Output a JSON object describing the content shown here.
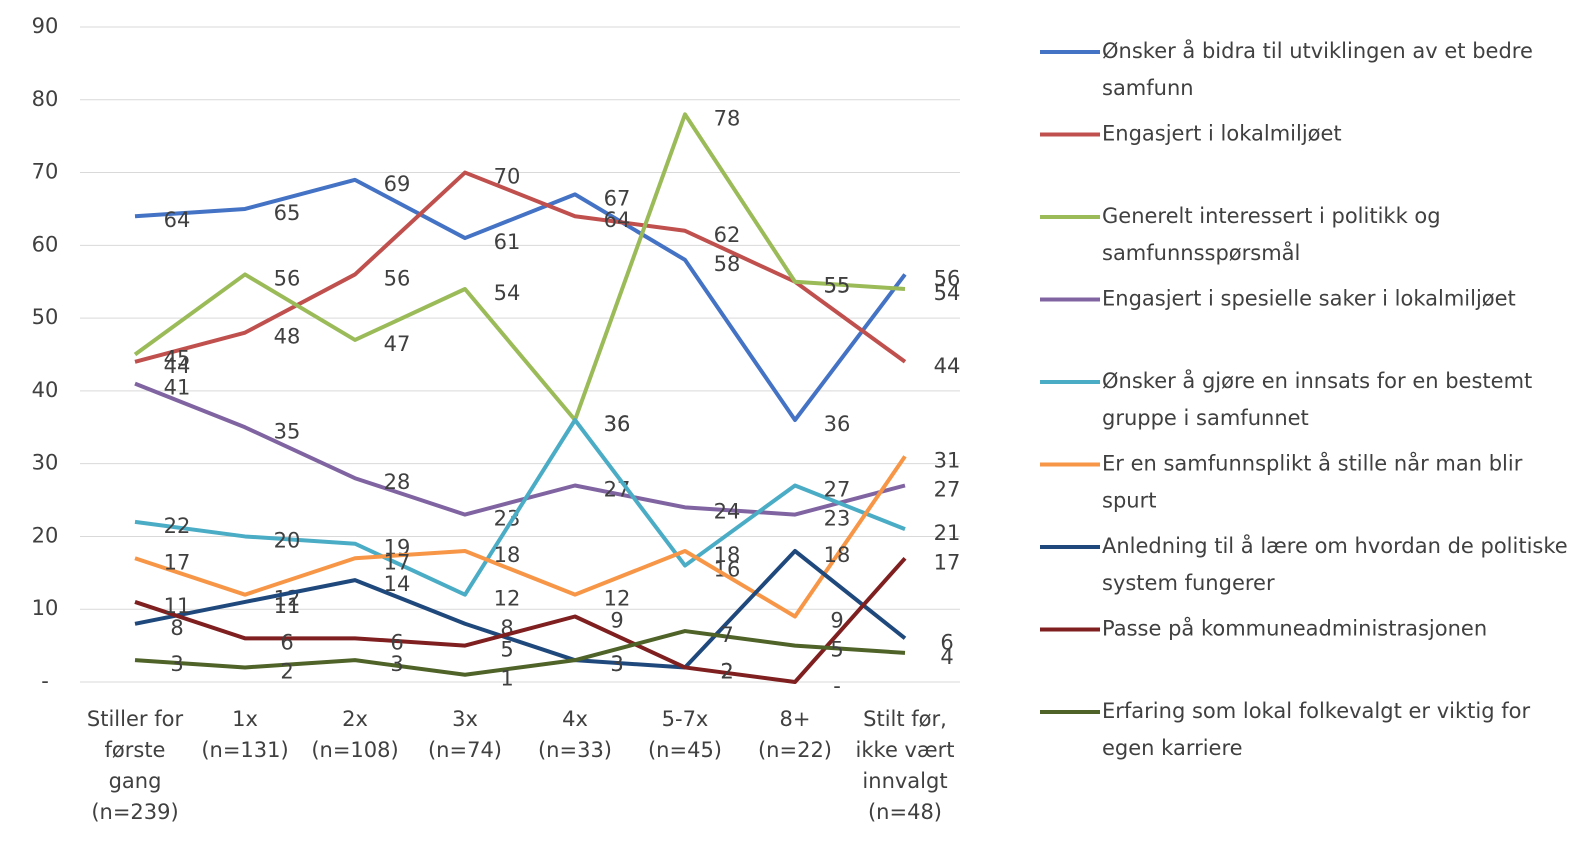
{
  "chart_data": {
    "type": "line",
    "categories": [
      "Stiller for første gang (n=239)",
      "1x (n=131)",
      "2x (n=108)",
      "3x (n=74)",
      "4x (n=33)",
      "5-7x (n=45)",
      "8+ (n=22)",
      "Stilt før, ikke vært innvalgt (n=48)"
    ],
    "series": [
      {
        "name": "Ønsker å bidra til utviklingen av et bedre samfunn",
        "color": "#4472c4",
        "values": [
          64,
          65,
          69,
          61,
          67,
          58,
          36,
          56
        ]
      },
      {
        "name": "Engasjert i lokalmiljøet",
        "color": "#c0504d",
        "values": [
          44,
          48,
          56,
          70,
          64,
          62,
          55,
          44
        ]
      },
      {
        "name": "Generelt interessert i politikk og samfunnsspørsmål",
        "color": "#9bbb59",
        "values": [
          45,
          56,
          47,
          54,
          36,
          78,
          55,
          54
        ]
      },
      {
        "name": "Engasjert i spesielle saker i lokalmiljøet",
        "color": "#8064a2",
        "values": [
          41,
          35,
          28,
          23,
          27,
          24,
          23,
          27
        ]
      },
      {
        "name": "Ønsker å gjøre en innsats for en bestemt gruppe i samfunnet",
        "color": "#4bacc6",
        "values": [
          22,
          20,
          19,
          12,
          36,
          16,
          27,
          21
        ]
      },
      {
        "name": "Er en samfunnsplikt å stille når man blir spurt",
        "color": "#f79646",
        "values": [
          17,
          12,
          17,
          18,
          12,
          18,
          9,
          31
        ]
      },
      {
        "name": "Anledning til å lære om hvordan de politiske system fungerer",
        "color": "#1f497d",
        "values": [
          8,
          11,
          14,
          8,
          3,
          2,
          18,
          6
        ]
      },
      {
        "name": "Passe på kommuneadministrasjonen",
        "color": "#7f1f1f",
        "values": [
          11,
          6,
          6,
          5,
          9,
          2,
          0,
          17
        ],
        "value_labels": [
          "11",
          "6",
          "6",
          "5",
          "9",
          "2",
          "-",
          "17"
        ]
      },
      {
        "name": "Erfaring som lokal folkevalgt er viktig for egen karriere",
        "color": "#4f6228",
        "values": [
          3,
          2,
          3,
          1,
          3,
          7,
          5,
          4
        ]
      }
    ],
    "ylim": [
      0,
      90
    ],
    "yticks": [
      {
        "value": 0,
        "label": "-"
      },
      10,
      20,
      30,
      40,
      50,
      60,
      70,
      80,
      90
    ],
    "grid": true,
    "legend": "right"
  }
}
